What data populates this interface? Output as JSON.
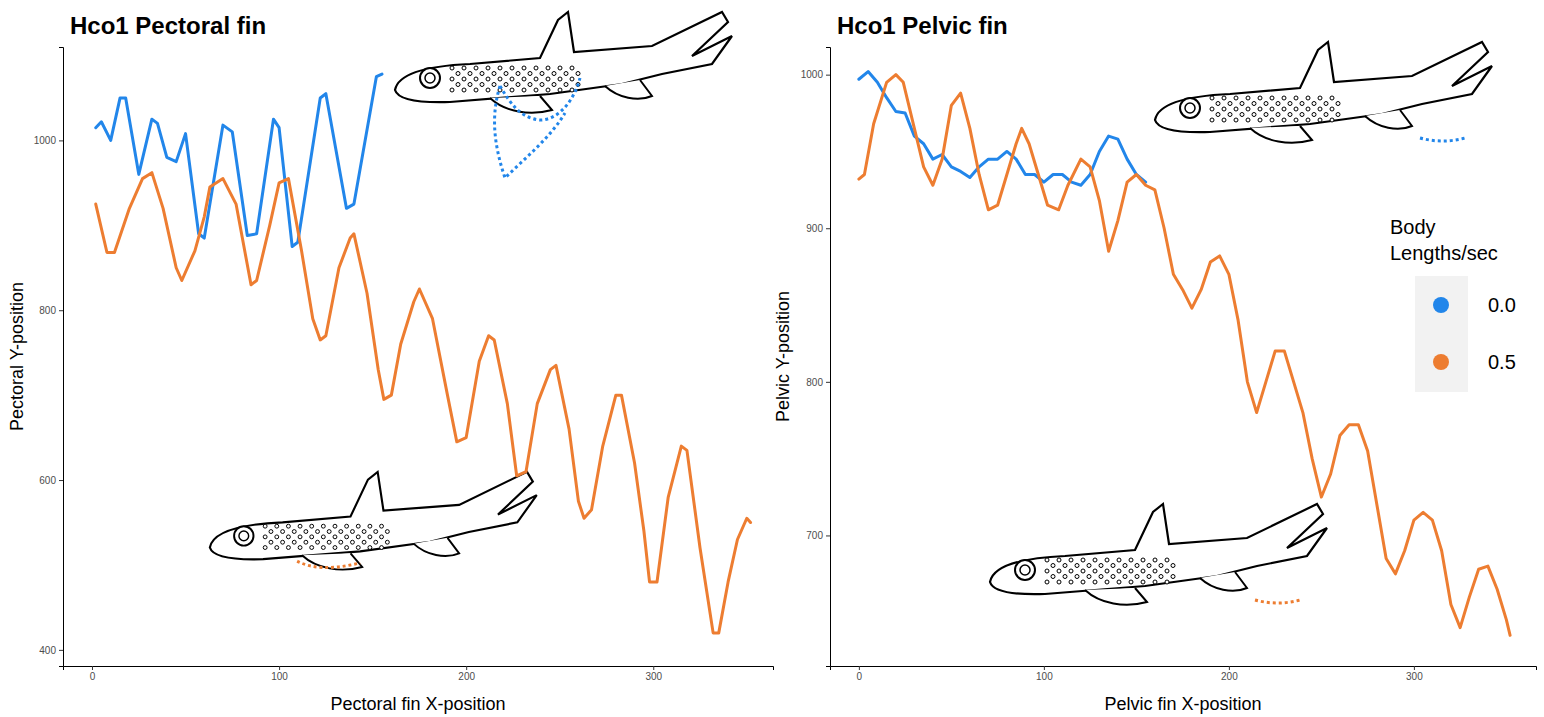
{
  "chart_data": [
    {
      "type": "line",
      "title": "Hco1 Pectoral fin",
      "x_label": "Pectoral fin X-position",
      "y_label": "Pectoral Y-position",
      "xlim": [
        -15.5,
        364
      ],
      "ylim": [
        381,
        1110
      ],
      "xticks": [
        0,
        100,
        200,
        300
      ],
      "yticks": [
        400,
        600,
        800,
        1000
      ],
      "grid": false,
      "series": [
        {
          "color": "#2286ea",
          "x": [
            2,
            5,
            10,
            15,
            18,
            25,
            32,
            35,
            40,
            45,
            50,
            57,
            60,
            70,
            75,
            83,
            88,
            97,
            100,
            107,
            110,
            122,
            125,
            136,
            140,
            152,
            155
          ],
          "values": [
            1015,
            1022,
            1000,
            1050,
            1050,
            960,
            1025,
            1020,
            980,
            975,
            1008,
            890,
            885,
            1018,
            1010,
            888,
            890,
            1025,
            1015,
            875,
            880,
            1050,
            1055,
            920,
            925,
            1075,
            1078
          ]
        },
        {
          "color": "#ed7d31",
          "x": [
            2,
            8,
            12,
            20,
            27,
            32,
            38,
            45,
            48,
            55,
            60,
            63,
            70,
            77,
            85,
            88,
            95,
            100,
            105,
            112,
            118,
            122,
            125,
            132,
            138,
            140,
            147,
            153,
            156,
            160,
            165,
            172,
            175,
            182,
            190,
            195,
            200,
            207,
            212,
            215,
            222,
            227,
            232,
            238,
            245,
            248,
            255,
            260,
            263,
            267,
            273,
            280,
            283,
            290,
            295,
            298,
            302,
            308,
            315,
            318,
            325,
            332,
            335,
            340,
            345,
            350,
            352
          ],
          "values": [
            925,
            868,
            868,
            920,
            955,
            962,
            920,
            850,
            835,
            870,
            910,
            945,
            955,
            925,
            830,
            835,
            900,
            950,
            955,
            870,
            790,
            765,
            770,
            850,
            885,
            890,
            820,
            730,
            695,
            700,
            760,
            810,
            825,
            790,
            700,
            645,
            650,
            740,
            770,
            765,
            690,
            605,
            610,
            690,
            730,
            735,
            660,
            575,
            555,
            565,
            640,
            700,
            700,
            620,
            540,
            480,
            480,
            580,
            640,
            635,
            520,
            420,
            420,
            480,
            530,
            555,
            550
          ]
        }
      ]
    },
    {
      "type": "line",
      "title": "Hco1 Pelvic fin",
      "x_label": "Pelvic fin X-position",
      "y_label": "Pelvic Y-position",
      "xlim": [
        -15.6,
        366
      ],
      "ylim": [
        615,
        1018
      ],
      "xticks": [
        0,
        100,
        200,
        300
      ],
      "yticks": [
        700,
        800,
        900,
        1000
      ],
      "grid": false,
      "legend": "right",
      "legend_title": "Body Lengths/sec",
      "series": [
        {
          "name": "0.0",
          "color": "#2286ea",
          "x": [
            0,
            5,
            10,
            15,
            20,
            25,
            30,
            35,
            40,
            45,
            50,
            55,
            60,
            65,
            70,
            75,
            80,
            85,
            90,
            95,
            100,
            105,
            110,
            115,
            120,
            125,
            130,
            135,
            140,
            145,
            150,
            155
          ],
          "values": [
            997,
            1002,
            995,
            985,
            976,
            975,
            960,
            955,
            945,
            948,
            940,
            937,
            933,
            940,
            945,
            945,
            950,
            945,
            935,
            935,
            930,
            935,
            935,
            930,
            928,
            935,
            950,
            960,
            958,
            945,
            935,
            930
          ]
        },
        {
          "name": "0.5",
          "color": "#ed7d31",
          "x": [
            0,
            3,
            8,
            15,
            20,
            24,
            30,
            35,
            40,
            45,
            50,
            55,
            60,
            65,
            70,
            75,
            80,
            85,
            88,
            92,
            97,
            102,
            108,
            113,
            120,
            125,
            130,
            135,
            140,
            145,
            150,
            155,
            160,
            165,
            170,
            175,
            180,
            185,
            190,
            195,
            200,
            205,
            210,
            215,
            220,
            225,
            230,
            235,
            240,
            245,
            250,
            255,
            260,
            265,
            270,
            275,
            280,
            285,
            290,
            295,
            300,
            305,
            310,
            315,
            320,
            325,
            330,
            335,
            340,
            345,
            350,
            352
          ],
          "values": [
            932,
            935,
            968,
            995,
            1000,
            995,
            965,
            940,
            928,
            945,
            980,
            988,
            965,
            935,
            912,
            915,
            935,
            955,
            965,
            955,
            935,
            915,
            912,
            928,
            945,
            940,
            918,
            885,
            905,
            930,
            935,
            928,
            925,
            900,
            870,
            860,
            848,
            860,
            878,
            882,
            870,
            840,
            800,
            780,
            800,
            820,
            820,
            800,
            780,
            750,
            725,
            740,
            765,
            772,
            772,
            755,
            720,
            685,
            675,
            690,
            710,
            715,
            710,
            690,
            655,
            640,
            660,
            678,
            680,
            665,
            645,
            635
          ]
        }
      ]
    }
  ]
}
